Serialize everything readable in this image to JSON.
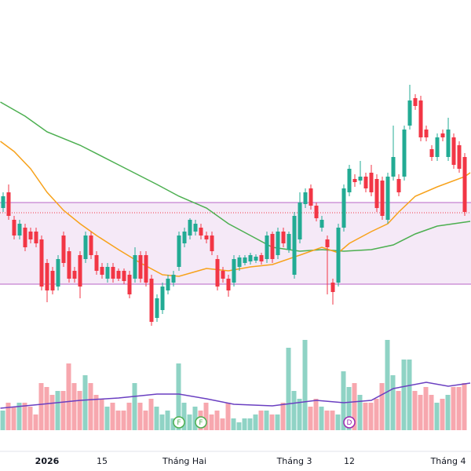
{
  "chart_data": {
    "type": "candlestick",
    "categories": [
      null,
      null,
      null,
      null,
      null,
      null,
      null,
      null,
      "2026",
      null,
      null,
      null,
      null,
      null,
      null,
      null,
      null,
      null,
      "15",
      null,
      null,
      null,
      null,
      null,
      null,
      null,
      null,
      null,
      null,
      null,
      null,
      null,
      null,
      "Tháng Hai",
      null,
      null,
      null,
      null,
      null,
      null,
      null,
      null,
      null,
      null,
      null,
      null,
      null,
      null,
      null,
      null,
      null,
      null,
      null,
      "Tháng 3",
      null,
      null,
      null,
      null,
      null,
      null,
      null,
      null,
      null,
      "12",
      null,
      null,
      null,
      null,
      null,
      null,
      null,
      null,
      null,
      null,
      null,
      null,
      null,
      null,
      null,
      null,
      null,
      "Tháng 4",
      null,
      null,
      null
    ],
    "open": [
      335,
      355,
      320,
      300,
      310,
      305,
      305,
      295,
      265,
      255,
      235,
      300,
      280,
      255,
      275,
      270,
      300,
      275,
      260,
      245,
      260,
      255,
      255,
      250,
      245,
      275,
      275,
      245,
      195,
      205,
      230,
      240,
      260,
      290,
      300,
      305,
      310,
      300,
      300,
      270,
      255,
      245,
      240,
      260,
      265,
      267,
      268,
      275,
      270,
      302,
      275,
      305,
      282,
      250,
      295,
      340,
      360,
      338,
      310,
      295,
      240,
      240,
      310,
      355,
      372,
      370,
      375,
      380,
      372,
      370,
      320,
      375,
      372,
      375,
      440,
      475,
      472,
      435,
      410,
      400,
      430,
      400,
      425,
      415,
      400
    ],
    "high": [
      355,
      365,
      325,
      320,
      315,
      310,
      310,
      300,
      270,
      260,
      275,
      305,
      285,
      260,
      280,
      305,
      305,
      280,
      265,
      265,
      265,
      258,
      258,
      255,
      285,
      280,
      280,
      250,
      225,
      240,
      250,
      255,
      305,
      310,
      322,
      320,
      315,
      305,
      305,
      275,
      260,
      250,
      275,
      275,
      275,
      278,
      276,
      278,
      305,
      305,
      310,
      310,
      305,
      330,
      355,
      360,
      365,
      342,
      325,
      300,
      245,
      315,
      365,
      390,
      378,
      395,
      380,
      390,
      378,
      375,
      380,
      440,
      378,
      440,
      492,
      480,
      478,
      440,
      415,
      430,
      435,
      450,
      430,
      420,
      405
    ],
    "low": [
      330,
      320,
      295,
      295,
      280,
      290,
      285,
      230,
      215,
      225,
      230,
      260,
      240,
      240,
      220,
      265,
      270,
      250,
      245,
      240,
      240,
      242,
      238,
      220,
      240,
      240,
      235,
      185,
      190,
      200,
      225,
      235,
      255,
      285,
      295,
      300,
      295,
      290,
      275,
      230,
      240,
      222,
      235,
      255,
      262,
      263,
      265,
      263,
      265,
      265,
      270,
      285,
      278,
      245,
      290,
      335,
      333,
      318,
      305,
      225,
      212,
      235,
      305,
      350,
      362,
      365,
      355,
      350,
      330,
      320,
      315,
      370,
      350,
      370,
      435,
      460,
      420,
      420,
      395,
      395,
      420,
      395,
      385,
      380,
      325
    ],
    "close": [
      350,
      325,
      300,
      315,
      285,
      295,
      290,
      235,
      230,
      230,
      270,
      265,
      245,
      245,
      235,
      300,
      275,
      255,
      250,
      260,
      245,
      245,
      242,
      225,
      275,
      245,
      240,
      190,
      220,
      235,
      245,
      250,
      300,
      305,
      320,
      315,
      300,
      295,
      280,
      235,
      245,
      230,
      270,
      272,
      272,
      275,
      273,
      267,
      300,
      270,
      305,
      290,
      302,
      325,
      342,
      355,
      338,
      322,
      320,
      285,
      228,
      310,
      360,
      385,
      368,
      375,
      360,
      355,
      335,
      325,
      375,
      400,
      355,
      435,
      472,
      465,
      425,
      425,
      400,
      425,
      425,
      435,
      390,
      385,
      330
    ],
    "up_color": "#22ab94",
    "down_color": "#f23645",
    "xlim": [
      -0.57,
      85.14
    ],
    "ylim": [
      150,
      600
    ],
    "zone": [
      238,
      342
    ],
    "zone_color": "#9c27b0",
    "level": 329,
    "level_color": "#f23645",
    "ma": [
      {
        "color": "#4caf50",
        "x": [
          -0.5,
          4,
          8,
          14,
          21,
          28,
          32,
          37,
          41,
          45,
          49,
          54,
          58,
          62,
          67,
          71,
          75,
          79,
          85
        ],
        "values": [
          470,
          452,
          432,
          415,
          390,
          365,
          350,
          335,
          315,
          300,
          285,
          280,
          282,
          280,
          282,
          288,
          302,
          312,
          318
        ]
      },
      {
        "color": "#f7a21b",
        "x": [
          -0.5,
          2,
          5,
          8,
          11,
          14,
          17,
          21,
          25,
          29,
          32,
          37,
          41,
          45,
          49,
          54,
          58,
          61,
          63,
          67,
          70,
          72,
          75,
          79,
          84,
          85
        ],
        "values": [
          420,
          407,
          385,
          355,
          332,
          315,
          300,
          282,
          265,
          250,
          248,
          258,
          255,
          260,
          263,
          275,
          285,
          278,
          290,
          305,
          315,
          330,
          350,
          362,
          375,
          380
        ]
      }
    ],
    "volume": [
      25,
      35,
      30,
      35,
      35,
      30,
      20,
      60,
      55,
      45,
      50,
      50,
      85,
      60,
      50,
      70,
      60,
      45,
      40,
      30,
      35,
      25,
      25,
      35,
      60,
      35,
      25,
      40,
      30,
      20,
      25,
      15,
      85,
      35,
      20,
      30,
      25,
      35,
      20,
      25,
      15,
      35,
      15,
      10,
      15,
      15,
      20,
      25,
      25,
      20,
      20,
      35,
      105,
      50,
      40,
      115,
      30,
      40,
      30,
      25,
      25,
      20,
      75,
      55,
      60,
      45,
      35,
      35,
      40,
      60,
      115,
      70,
      50,
      90,
      90,
      50,
      45,
      55,
      45,
      35,
      40,
      45,
      55,
      55,
      60
    ],
    "volume_ylim": [
      0,
      120
    ],
    "volume_up_color": "#8fd3c5",
    "volume_down_color": "#f7a7ae",
    "volume_ma": {
      "color": "#6a3fc1",
      "x": [
        -0.5,
        7,
        14,
        21,
        28,
        32,
        37,
        42,
        49,
        57,
        62,
        67,
        71,
        77,
        81,
        85
      ],
      "values": [
        28,
        33,
        38,
        41,
        46,
        46,
        40,
        33,
        31,
        38,
        35,
        38,
        53,
        61,
        56,
        60
      ]
    },
    "events": [
      {
        "label": "F",
        "index": 32,
        "color": "#4caf50"
      },
      {
        "label": "F",
        "index": 36,
        "color": "#4caf50"
      },
      {
        "label": "D",
        "index": 63,
        "color": "#9c27b0"
      }
    ]
  }
}
